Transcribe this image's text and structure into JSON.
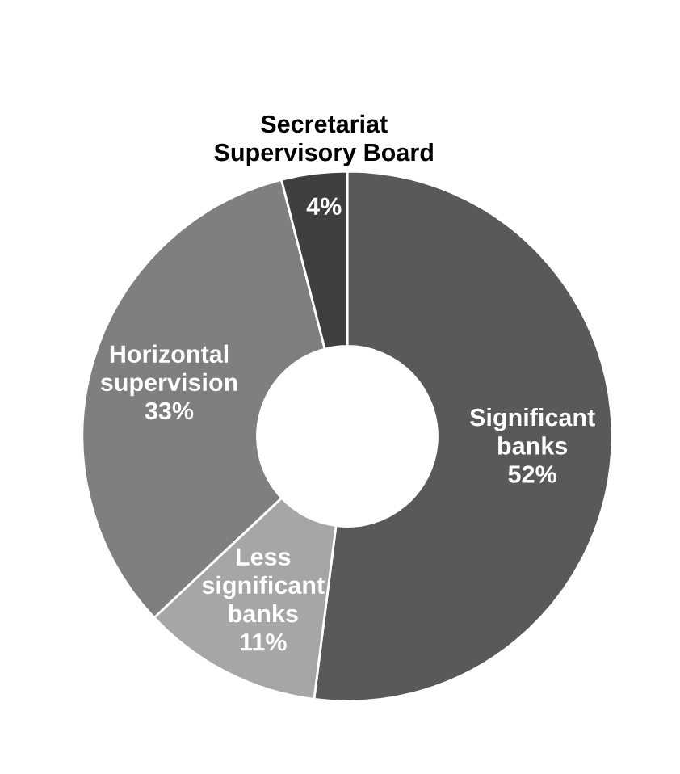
{
  "chart_data": {
    "type": "donut",
    "categories": [
      "Significant\nbanks",
      "Less\nsignificant\nbanks",
      "Horizontal\nsupervision",
      "Secretariat\nSupervisory Board"
    ],
    "values": [
      52,
      11,
      33,
      4
    ],
    "value_labels": [
      "52%",
      "11%",
      "33%",
      "4%"
    ],
    "colors": [
      "#595959",
      "#a6a6a6",
      "#7f7f7f",
      "#3f3f3f"
    ],
    "legend": false
  }
}
